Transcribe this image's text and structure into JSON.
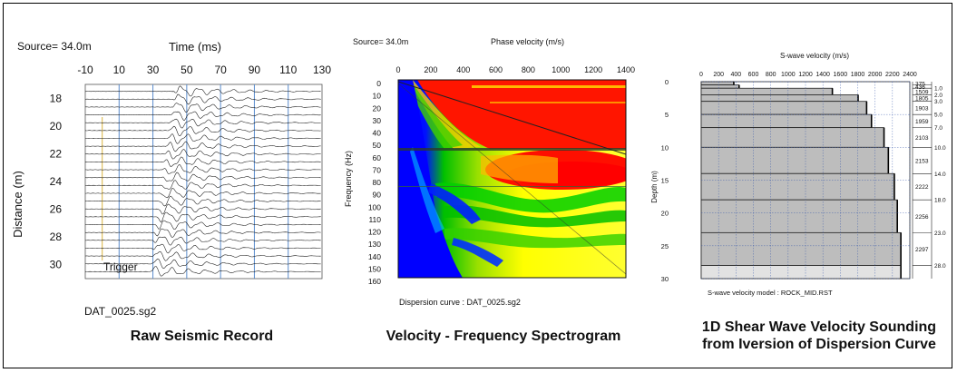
{
  "panels": {
    "raw": {
      "source_label": "Source= 34.0m",
      "time_axis_title": "Time (ms)",
      "time_ticks": [
        "-10",
        "10",
        "30",
        "50",
        "70",
        "90",
        "110",
        "130"
      ],
      "distance_axis_title": "Distance (m)",
      "distance_ticks": [
        "18",
        "20",
        "22",
        "24",
        "26",
        "28",
        "30"
      ],
      "trigger_label": "Trigger",
      "file_label": "DAT_0025.sg2",
      "caption": "Raw Seismic Record"
    },
    "spectrogram": {
      "source_label": "Source= 34.0m",
      "phase_axis_title": "Phase velocity (m/s)",
      "phase_ticks": [
        "0",
        "200",
        "400",
        "600",
        "800",
        "1000",
        "1200",
        "1400"
      ],
      "freq_axis_title": "Frequency (Hz)",
      "freq_ticks": [
        "0",
        "10",
        "20",
        "30",
        "40",
        "50",
        "60",
        "70",
        "80",
        "90",
        "100",
        "110",
        "120",
        "130",
        "140",
        "150",
        "160"
      ],
      "curve_label": "Dispersion curve : DAT_0025.sg2",
      "caption": "Velocity - Frequency Spectrogram"
    },
    "sounding": {
      "vs_axis_title": "S-wave velocity (m/s)",
      "vs_ticks": [
        "0",
        "200",
        "400",
        "600",
        "800",
        "1000",
        "1200",
        "1400",
        "1600",
        "1800",
        "2000",
        "2200",
        "2400"
      ],
      "depth_axis_title": "Depth (m)",
      "depth_ticks": [
        "0",
        "5",
        "10",
        "15",
        "20",
        "25",
        "30"
      ],
      "model_label": "S-wave velocity model  :  ROCK_MID.RST",
      "caption_line1": "1D Shear Wave Velocity Sounding",
      "caption_line2": "from Iversion of Dispersion Curve"
    }
  },
  "colors": {
    "trigger_line": "#e0c060",
    "grid_blue": "#5a8ccc",
    "layer_fill": "#bdbdbd",
    "layer_fill_light": "#e2e2e2"
  },
  "chart_data": [
    {
      "type": "line",
      "title": "Raw Seismic Record",
      "xlabel": "Time (ms)",
      "ylabel": "Distance (m)",
      "xlim": [
        -10,
        130
      ],
      "ylim": [
        17,
        31
      ],
      "x_ticks": [
        -10,
        10,
        30,
        50,
        70,
        90,
        110,
        130
      ],
      "y_ticks": [
        18,
        20,
        22,
        24,
        26,
        28,
        30
      ],
      "trace_count": 24,
      "trigger_time": 0,
      "first_arrival": [
        {
          "distance": 17,
          "time": 45
        },
        {
          "distance": 30,
          "time": 30
        }
      ]
    },
    {
      "type": "heatmap",
      "title": "Velocity - Frequency Spectrogram",
      "xlabel": "Phase velocity (m/s)",
      "ylabel": "Frequency (Hz)",
      "xlim": [
        0,
        1400
      ],
      "ylim": [
        0,
        160
      ],
      "x_ticks": [
        0,
        200,
        400,
        600,
        800,
        1000,
        1200,
        1400
      ],
      "y_ticks": [
        0,
        10,
        20,
        30,
        40,
        50,
        60,
        70,
        80,
        90,
        100,
        110,
        120,
        130,
        140,
        150,
        160
      ],
      "colorscale": [
        "#0000ff",
        "#00cc00",
        "#ffff00",
        "#ff0000"
      ]
    },
    {
      "type": "bar",
      "title": "1D Shear Wave Velocity Sounding",
      "xlabel": "S-wave velocity (m/s)",
      "ylabel": "Depth (m)",
      "xlim": [
        0,
        2400
      ],
      "ylim": [
        0,
        30
      ],
      "x_ticks": [
        0,
        200,
        400,
        600,
        800,
        1000,
        1200,
        1400,
        1600,
        1800,
        2000,
        2200,
        2400
      ],
      "y_ticks": [
        0,
        5,
        10,
        15,
        20,
        25,
        30
      ],
      "layers": [
        {
          "top": 0.0,
          "bottom": 0.5,
          "velocity": 375,
          "label": "375"
        },
        {
          "top": 0.5,
          "bottom": 1.0,
          "velocity": 436,
          "label": "436"
        },
        {
          "top": 1.0,
          "bottom": 2.0,
          "velocity": 1509,
          "label": "1509"
        },
        {
          "top": 2.0,
          "bottom": 3.0,
          "velocity": 1805,
          "label": "1805"
        },
        {
          "top": 3.0,
          "bottom": 5.0,
          "velocity": 1903,
          "label": "1903"
        },
        {
          "top": 5.0,
          "bottom": 7.0,
          "velocity": 1959,
          "label": "1959"
        },
        {
          "top": 7.0,
          "bottom": 10.0,
          "velocity": 2103,
          "label": "2103"
        },
        {
          "top": 10.0,
          "bottom": 14.0,
          "velocity": 2153,
          "label": "2153"
        },
        {
          "top": 14.0,
          "bottom": 18.0,
          "velocity": 2222,
          "label": "2222"
        },
        {
          "top": 18.0,
          "bottom": 23.0,
          "velocity": 2256,
          "label": "2256"
        },
        {
          "top": 23.0,
          "bottom": 28.0,
          "velocity": 2297,
          "label": "2297"
        },
        {
          "top": 28.0,
          "bottom": 30.0,
          "velocity": 2297,
          "label": ""
        }
      ],
      "interface_depths": [
        "1.0",
        "2.0",
        "3.0",
        "5.0",
        "7.0",
        "10.0",
        "14.0",
        "18.0",
        "23.0",
        "28.0"
      ]
    }
  ]
}
